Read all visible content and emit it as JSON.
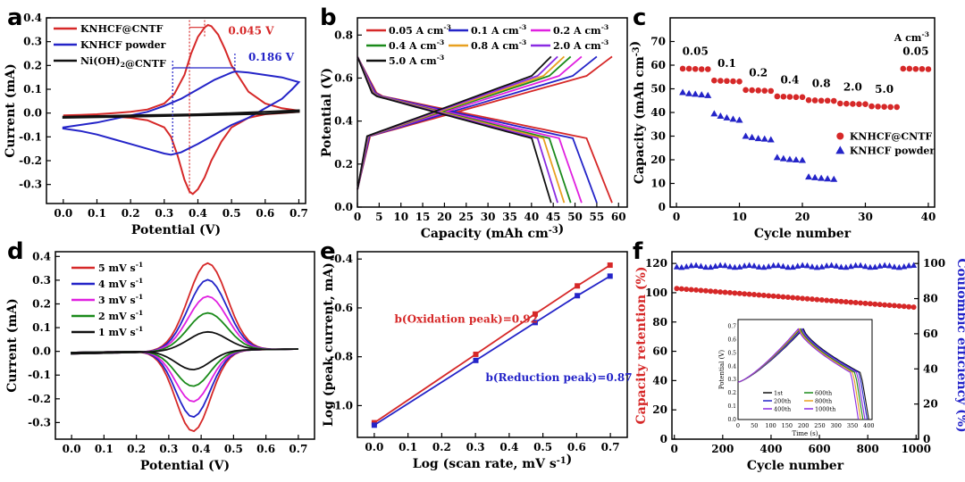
{
  "colors": {
    "red": "#d62828",
    "blue": "#2424c8",
    "black": "#111111",
    "magenta": "#e020e0",
    "green": "#1a8a1a",
    "orange": "#e8a020",
    "purple": "#8a2be2"
  },
  "chart_data": [
    {
      "id": "a",
      "type": "line",
      "panel_label": "a",
      "xlabel": "Potential (V)",
      "ylabel": "Current (mA)",
      "xlim": [
        -0.05,
        0.72
      ],
      "ylim": [
        -0.38,
        0.4
      ],
      "xticks": [
        "0.0",
        "0.1",
        "0.2",
        "0.3",
        "0.4",
        "0.5",
        "0.6",
        "0.7"
      ],
      "yticks": [
        "-0.3",
        "-0.2",
        "-0.1",
        "0.0",
        "0.1",
        "0.2",
        "0.3",
        "0.4"
      ],
      "legend": "top-left",
      "series": [
        {
          "name": "KNHCF@CNTF",
          "color": "red",
          "x": [
            0,
            0.05,
            0.1,
            0.15,
            0.2,
            0.25,
            0.3,
            0.33,
            0.36,
            0.38,
            0.4,
            0.42,
            0.43,
            0.44,
            0.46,
            0.48,
            0.5,
            0.55,
            0.6,
            0.65,
            0.7,
            0.7,
            0.65,
            0.6,
            0.55,
            0.5,
            0.47,
            0.44,
            0.42,
            0.4,
            0.385,
            0.375,
            0.36,
            0.34,
            0.32,
            0.3,
            0.25,
            0.2,
            0.15,
            0.1,
            0.05,
            0
          ],
          "y": [
            -0.01,
            -0.008,
            -0.005,
            0,
            0.005,
            0.015,
            0.04,
            0.08,
            0.16,
            0.25,
            0.32,
            0.36,
            0.37,
            0.365,
            0.33,
            0.27,
            0.2,
            0.09,
            0.04,
            0.02,
            0.01,
            0.005,
            0,
            -0.005,
            -0.02,
            -0.06,
            -0.12,
            -0.2,
            -0.27,
            -0.32,
            -0.34,
            -0.33,
            -0.28,
            -0.18,
            -0.1,
            -0.06,
            -0.03,
            -0.02,
            -0.015,
            -0.012,
            -0.01,
            -0.01
          ]
        },
        {
          "name": "KNHCF powder",
          "color": "blue",
          "x": [
            0,
            0.05,
            0.1,
            0.15,
            0.2,
            0.25,
            0.3,
            0.35,
            0.4,
            0.45,
            0.5,
            0.51,
            0.55,
            0.6,
            0.65,
            0.7,
            0.68,
            0.65,
            0.6,
            0.55,
            0.5,
            0.45,
            0.4,
            0.35,
            0.32,
            0.3,
            0.25,
            0.2,
            0.15,
            0.1,
            0.05,
            0
          ],
          "y": [
            -0.06,
            -0.05,
            -0.04,
            -0.025,
            -0.01,
            0.005,
            0.03,
            0.06,
            0.1,
            0.14,
            0.17,
            0.175,
            0.17,
            0.16,
            0.15,
            0.13,
            0.1,
            0.06,
            0.02,
            -0.02,
            -0.05,
            -0.09,
            -0.13,
            -0.165,
            -0.175,
            -0.17,
            -0.15,
            -0.13,
            -0.11,
            -0.09,
            -0.075,
            -0.065
          ]
        },
        {
          "name": "Ni(OH)2@CNTF",
          "color": "black",
          "x": [
            0,
            0.2,
            0.4,
            0.6,
            0.7,
            0.7,
            0.6,
            0.4,
            0.2,
            0
          ],
          "y": [
            -0.015,
            -0.01,
            -0.005,
            0.005,
            0.012,
            0.005,
            -0.003,
            -0.01,
            -0.015,
            -0.02
          ]
        }
      ],
      "annotations": [
        {
          "text": "0.045 V",
          "color": "red"
        },
        {
          "text": "0.186 V",
          "color": "blue"
        }
      ]
    },
    {
      "id": "b",
      "type": "line",
      "panel_label": "b",
      "xlabel": "Capacity (mAh cm-3)",
      "ylabel": "Potential (V)",
      "xlim": [
        0,
        62
      ],
      "ylim": [
        0,
        0.88
      ],
      "xticks": [
        "0",
        "5",
        "10",
        "15",
        "20",
        "25",
        "30",
        "35",
        "40",
        "45",
        "50",
        "55",
        "60"
      ],
      "yticks": [
        "0.0",
        "0.2",
        "0.4",
        "0.6",
        "0.8"
      ],
      "legend": "top",
      "series": [
        {
          "name": "0.05 A cm-3",
          "color": "red",
          "capacity": 58.5
        },
        {
          "name": "0.1 A cm-3",
          "color": "blue",
          "capacity": 55
        },
        {
          "name": "0.2 A cm-3",
          "color": "magenta",
          "capacity": 51.5
        },
        {
          "name": "0.4 A cm-3",
          "color": "green",
          "capacity": 49
        },
        {
          "name": "0.8 A cm-3",
          "color": "orange",
          "capacity": 47.5
        },
        {
          "name": "2.0 A cm-3",
          "color": "purple",
          "capacity": 46
        },
        {
          "name": "5.0 A cm-3",
          "color": "black",
          "capacity": 44.5
        }
      ]
    },
    {
      "id": "c",
      "type": "scatter",
      "panel_label": "c",
      "xlabel": "Cycle number",
      "ylabel": "Capacity (mAh cm-3)",
      "xlim": [
        -1,
        41
      ],
      "ylim": [
        0,
        80
      ],
      "xticks": [
        "0",
        "10",
        "20",
        "30",
        "40"
      ],
      "yticks": [
        "0",
        "10",
        "20",
        "30",
        "40",
        "50",
        "60",
        "70"
      ],
      "unit_label": "A cm-3",
      "rate_labels": [
        "0.05",
        "0.1",
        "0.2",
        "0.4",
        "0.8",
        "2.0",
        "5.0",
        "0.05"
      ],
      "legend": "right",
      "series": [
        {
          "name": "KNHCF@CNTF",
          "color": "red",
          "marker": "circle",
          "x": [
            1,
            2,
            3,
            4,
            5,
            6,
            7,
            8,
            9,
            10,
            11,
            12,
            13,
            14,
            15,
            16,
            17,
            18,
            19,
            20,
            21,
            22,
            23,
            24,
            25,
            26,
            27,
            28,
            29,
            30,
            31,
            32,
            33,
            34,
            35,
            36,
            37,
            38,
            39,
            40
          ],
          "y": [
            58.5,
            58.5,
            58.4,
            58.3,
            58.3,
            53.5,
            53.4,
            53.3,
            53.2,
            53.1,
            49.5,
            49.4,
            49.3,
            49.2,
            49.1,
            46.8,
            46.7,
            46.6,
            46.5,
            46.5,
            45.2,
            45.1,
            45,
            45,
            44.9,
            43.8,
            43.7,
            43.6,
            43.5,
            43.5,
            42.6,
            42.5,
            42.4,
            42.3,
            42.3,
            58.5,
            58.5,
            58.4,
            58.4,
            58.3
          ]
        },
        {
          "name": "KNHCF powder",
          "color": "blue",
          "marker": "triangle",
          "x": [
            1,
            2,
            3,
            4,
            5,
            6,
            7,
            8,
            9,
            10,
            11,
            12,
            13,
            14,
            15,
            16,
            17,
            18,
            19,
            20,
            21,
            22,
            23,
            24,
            25
          ],
          "y": [
            48.5,
            48,
            47.8,
            47.5,
            47.2,
            39.5,
            38.5,
            37.8,
            37.2,
            36.8,
            30,
            29.5,
            29,
            28.8,
            28.5,
            21,
            20.5,
            20.2,
            20,
            19.8,
            12.8,
            12.5,
            12.2,
            12,
            11.8
          ]
        }
      ]
    },
    {
      "id": "d",
      "type": "line",
      "panel_label": "d",
      "xlabel": "Potential (V)",
      "ylabel": "Current (mA)",
      "xlim": [
        -0.05,
        0.75
      ],
      "ylim": [
        -0.37,
        0.42
      ],
      "xticks": [
        "0.0",
        "0.1",
        "0.2",
        "0.3",
        "0.4",
        "0.5",
        "0.6",
        "0.7"
      ],
      "yticks": [
        "-0.3",
        "-0.2",
        "-0.1",
        "0.0",
        "0.1",
        "0.2",
        "0.3",
        "0.4"
      ],
      "legend": "top-left",
      "series": [
        {
          "name": "5 mV s-1",
          "color": "red",
          "ox_peak": 0.37,
          "red_peak": -0.34
        },
        {
          "name": "4 mV s-1",
          "color": "blue",
          "ox_peak": 0.3,
          "red_peak": -0.28
        },
        {
          "name": "3 mV s-1",
          "color": "magenta",
          "ox_peak": 0.23,
          "red_peak": -0.215
        },
        {
          "name": "2 mV s-1",
          "color": "green",
          "ox_peak": 0.16,
          "red_peak": -0.15
        },
        {
          "name": "1 mV s-1",
          "color": "black",
          "ox_peak": 0.08,
          "red_peak": -0.08
        }
      ]
    },
    {
      "id": "e",
      "type": "line",
      "panel_label": "e",
      "xlabel": "Log (scan rate, mV s-1)",
      "ylabel": "Log (peak current, mA)",
      "xlim": [
        -0.05,
        0.75
      ],
      "ylim": [
        -1.13,
        -0.37
      ],
      "xticks": [
        "0.0",
        "0.1",
        "0.2",
        "0.3",
        "0.4",
        "0.5",
        "0.6",
        "0.7"
      ],
      "yticks": [
        "-1.0",
        "-0.8",
        "-0.6",
        "-0.4"
      ],
      "series": [
        {
          "name": "b(Oxidation peak)=0.92",
          "color": "red",
          "x": [
            0,
            0.301,
            0.477,
            0.602,
            0.699
          ],
          "y": [
            -1.07,
            -0.79,
            -0.625,
            -0.51,
            -0.425
          ]
        },
        {
          "name": "b(Reduction peak)=0.87",
          "color": "blue",
          "x": [
            0,
            0.301,
            0.477,
            0.602,
            0.699
          ],
          "y": [
            -1.08,
            -0.815,
            -0.66,
            -0.55,
            -0.47
          ]
        }
      ]
    },
    {
      "id": "f",
      "type": "scatter",
      "panel_label": "f",
      "xlabel": "Cycle number",
      "ylabel": "Capacity retention (%)",
      "y2label": "Coulombic efficiency (%)",
      "xlim": [
        -10,
        1010
      ],
      "ylim": [
        0,
        128
      ],
      "y2lim": [
        0,
        106.7
      ],
      "xticks": [
        "0",
        "200",
        "400",
        "600",
        "800",
        "1000"
      ],
      "yticks": [
        "0",
        "20",
        "40",
        "60",
        "80",
        "100",
        "120"
      ],
      "y2ticks": [
        "0",
        "20",
        "40",
        "60",
        "80",
        "100"
      ],
      "series": [
        {
          "name": "Capacity retention",
          "color": "red",
          "axis": "left",
          "start": 103,
          "end": 90
        },
        {
          "name": "Coulombic efficiency",
          "color": "blue",
          "axis": "right",
          "value": 98.5
        }
      ],
      "inset": {
        "xlabel": "Time (s)",
        "ylabel": "Potential (V)",
        "xticks": [
          "0",
          "50",
          "100",
          "150",
          "200",
          "250",
          "300",
          "350",
          "400"
        ],
        "yticks": [
          "0.0",
          "0.1",
          "0.2",
          "0.3",
          "0.4",
          "0.5",
          "0.6",
          "0.7"
        ],
        "series": [
          {
            "name": "1st",
            "color": "black",
            "end": 400
          },
          {
            "name": "200th",
            "color": "blue",
            "end": 395
          },
          {
            "name": "400th",
            "color": "purple",
            "end": 388
          },
          {
            "name": "600th",
            "color": "green",
            "end": 382
          },
          {
            "name": "800th",
            "color": "orange",
            "end": 375
          },
          {
            "name": "1000th",
            "color": "purple",
            "end": 368
          }
        ]
      }
    }
  ]
}
